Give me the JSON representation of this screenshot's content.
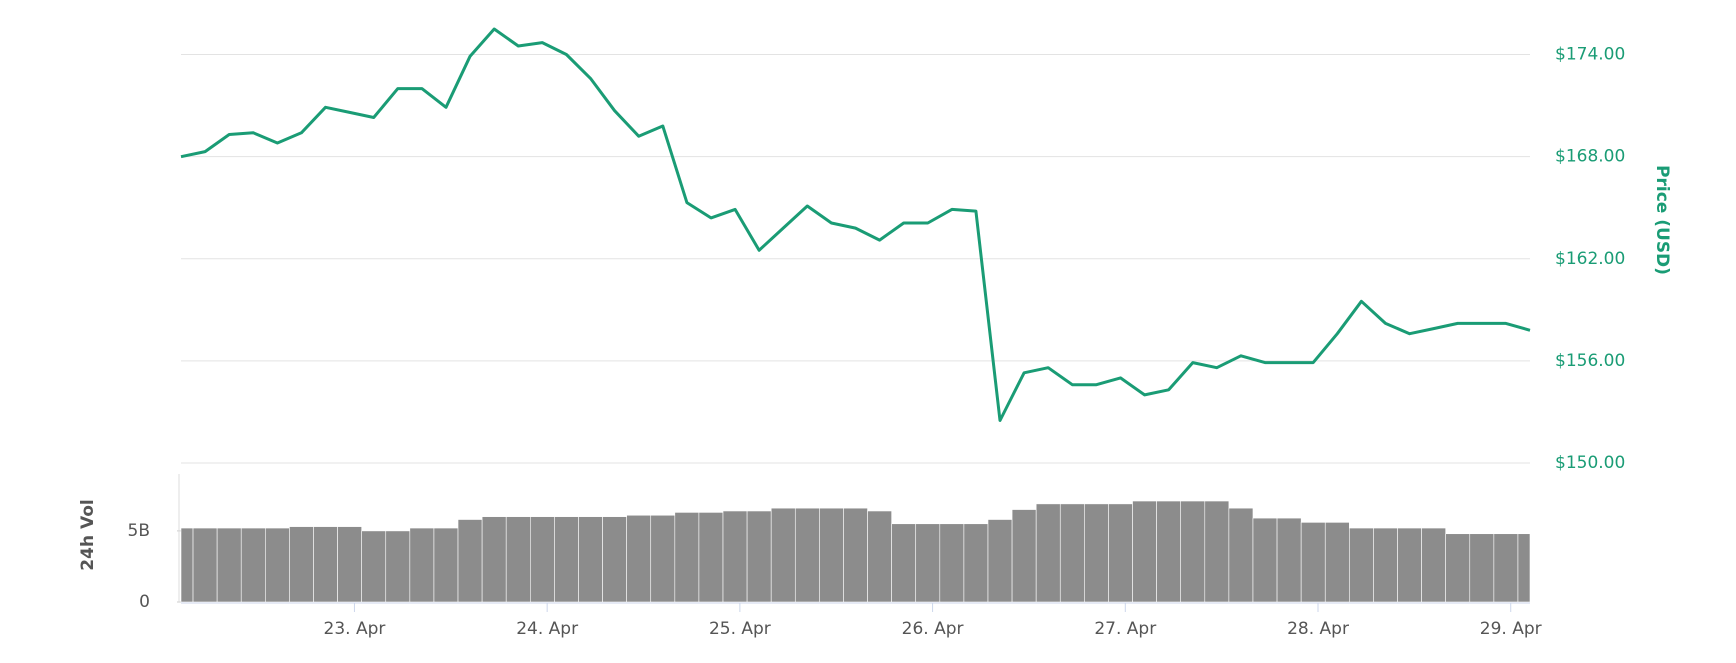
{
  "chart_data": [
    {
      "type": "line",
      "y_axis_label": "Price (USD)",
      "color": "#1a9c75",
      "x": [
        22.1,
        22.225,
        22.35,
        22.475,
        22.6,
        22.725,
        22.85,
        22.975,
        23.1,
        23.225,
        23.35,
        23.475,
        23.6,
        23.725,
        23.85,
        23.975,
        24.1,
        24.225,
        24.35,
        24.475,
        24.6,
        24.725,
        24.85,
        24.975,
        25.1,
        25.225,
        25.35,
        25.475,
        25.6,
        25.725,
        25.85,
        25.975,
        26.1,
        26.225,
        26.35,
        26.475,
        26.6,
        26.725,
        26.85,
        26.975,
        27.1,
        27.225,
        27.35,
        27.475,
        27.6,
        27.725,
        27.85,
        27.975,
        28.1,
        28.225,
        28.35,
        28.475,
        28.6,
        28.725,
        28.85,
        28.975,
        29.1
      ],
      "values": [
        168.0,
        168.3,
        169.3,
        169.4,
        168.8,
        169.4,
        170.9,
        170.6,
        170.3,
        172.0,
        172.0,
        170.9,
        173.9,
        175.5,
        174.5,
        174.7,
        174.0,
        172.6,
        170.7,
        169.2,
        169.8,
        165.3,
        164.4,
        164.9,
        162.5,
        163.8,
        165.1,
        164.1,
        163.8,
        163.1,
        164.1,
        164.1,
        164.9,
        164.8,
        152.5,
        155.3,
        155.6,
        154.6,
        154.6,
        155.0,
        154.0,
        154.3,
        155.9,
        155.6,
        156.3,
        155.9,
        155.9,
        155.9,
        157.6,
        159.5,
        158.2,
        157.6,
        157.9,
        158.2,
        158.2,
        158.2,
        157.8
      ],
      "xlim": [
        22.1,
        29.1
      ],
      "ylim": [
        150,
        176.5
      ],
      "yticks": [
        {
          "value": 150,
          "label": "$150.00"
        },
        {
          "value": 156,
          "label": "$156.00"
        },
        {
          "value": 162,
          "label": "$162.00"
        },
        {
          "value": 168,
          "label": "$168.00"
        },
        {
          "value": 174,
          "label": "$174.00"
        }
      ],
      "grid": true
    },
    {
      "type": "bar",
      "y_axis_label": "24h Vol",
      "color": "#8c8c8c",
      "x": [
        22.1,
        22.225,
        22.35,
        22.475,
        22.6,
        22.725,
        22.85,
        22.975,
        23.1,
        23.225,
        23.35,
        23.475,
        23.6,
        23.725,
        23.85,
        23.975,
        24.1,
        24.225,
        24.35,
        24.475,
        24.6,
        24.725,
        24.85,
        24.975,
        25.1,
        25.225,
        25.35,
        25.475,
        25.6,
        25.725,
        25.85,
        25.975,
        26.1,
        26.225,
        26.35,
        26.475,
        26.6,
        26.725,
        26.85,
        26.975,
        27.1,
        27.225,
        27.35,
        27.475,
        27.6,
        27.725,
        27.85,
        27.975,
        28.1,
        28.225,
        28.35,
        28.475,
        28.6,
        28.725,
        28.85,
        28.975,
        29.1
      ],
      "values": [
        5.2,
        5.2,
        5.2,
        5.2,
        5.2,
        5.3,
        5.3,
        5.3,
        5.0,
        5.0,
        5.2,
        5.2,
        5.8,
        6.0,
        6.0,
        6.0,
        6.0,
        6.0,
        6.0,
        6.1,
        6.1,
        6.3,
        6.3,
        6.4,
        6.4,
        6.6,
        6.6,
        6.6,
        6.6,
        6.4,
        5.5,
        5.5,
        5.5,
        5.5,
        5.8,
        6.5,
        6.9,
        6.9,
        6.9,
        6.9,
        7.1,
        7.1,
        7.1,
        7.1,
        6.6,
        5.9,
        5.9,
        5.6,
        5.6,
        5.2,
        5.2,
        5.2,
        5.2,
        4.8,
        4.8,
        4.8,
        4.8
      ],
      "xlim": [
        22.1,
        29.1
      ],
      "ylim": [
        0,
        9
      ],
      "yticks": [
        0,
        {
          "value": 5,
          "label": "5B"
        }
      ],
      "xticks": [
        {
          "value": 23,
          "label": "23. Apr"
        },
        {
          "value": 24,
          "label": "24. Apr"
        },
        {
          "value": 25,
          "label": "25. Apr"
        },
        {
          "value": 26,
          "label": "26. Apr"
        },
        {
          "value": 27,
          "label": "27. Apr"
        },
        {
          "value": 28,
          "label": "28. Apr"
        },
        {
          "value": 29,
          "label": "29. Apr"
        }
      ]
    }
  ]
}
